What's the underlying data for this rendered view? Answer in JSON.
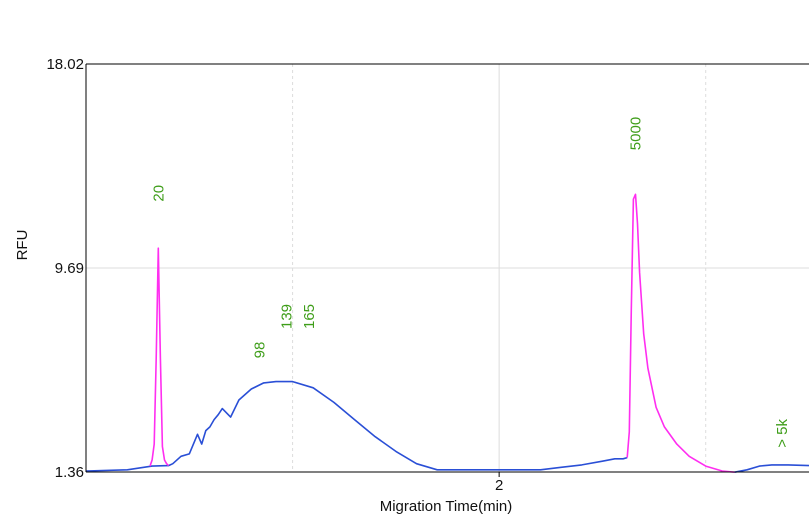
{
  "chart_data": {
    "type": "line",
    "xlabel": "Migration Time(min)",
    "ylabel": "RFU",
    "ylim": [
      1.36,
      18.02
    ],
    "y_ticks": [
      "18.02",
      "9.69",
      "1.36"
    ],
    "x_ticks": [
      {
        "value": 2,
        "label": "2"
      }
    ],
    "xlim": [
      1.0,
      2.75
    ],
    "grid": true,
    "colors": {
      "baseline": "#2a4fd6",
      "peak": "#ff2ef0",
      "label": "#3f9e1a",
      "grid": "#dddddd",
      "axis": "#000000"
    },
    "series": [
      {
        "role": "baseline",
        "x": [
          1.0,
          1.1,
          1.16,
          1.2,
          1.21,
          1.23,
          1.25,
          1.27,
          1.28,
          1.29,
          1.3,
          1.31,
          1.32,
          1.33,
          1.35,
          1.37,
          1.4,
          1.43,
          1.46,
          1.5,
          1.55,
          1.6,
          1.65,
          1.7,
          1.75,
          1.8,
          1.85,
          1.9,
          1.95,
          2.0,
          2.05,
          2.1,
          2.15,
          2.2,
          2.25,
          2.28,
          2.3,
          2.31
        ],
        "y": [
          1.4,
          1.45,
          1.6,
          1.62,
          1.7,
          2.0,
          2.1,
          2.9,
          2.5,
          3.05,
          3.2,
          3.5,
          3.7,
          3.95,
          3.6,
          4.3,
          4.75,
          5.0,
          5.05,
          5.05,
          4.8,
          4.2,
          3.5,
          2.8,
          2.2,
          1.7,
          1.45,
          1.45,
          1.45,
          1.45,
          1.45,
          1.45,
          1.55,
          1.65,
          1.8,
          1.9,
          1.9,
          1.95
        ]
      },
      {
        "role": "peak",
        "x": [
          1.155,
          1.16,
          1.165,
          1.17,
          1.175,
          1.18,
          1.185,
          1.19,
          1.195,
          1.2
        ],
        "y": [
          1.6,
          1.85,
          2.5,
          6.0,
          10.5,
          6.0,
          2.4,
          1.85,
          1.7,
          1.62
        ]
      },
      {
        "role": "peak",
        "x": [
          2.31,
          2.315,
          2.32,
          2.325,
          2.33,
          2.335,
          2.34,
          2.35,
          2.36,
          2.38,
          2.4,
          2.43,
          2.46,
          2.5,
          2.54,
          2.57
        ],
        "y": [
          1.95,
          3.0,
          8.0,
          12.5,
          12.7,
          11.5,
          9.5,
          7.0,
          5.6,
          4.0,
          3.2,
          2.5,
          2.0,
          1.6,
          1.4,
          1.35
        ]
      },
      {
        "role": "baseline",
        "x": [
          2.57,
          2.6,
          2.63,
          2.66,
          2.7,
          2.75
        ],
        "y": [
          1.35,
          1.45,
          1.6,
          1.65,
          1.65,
          1.62
        ]
      }
    ],
    "peaks": [
      {
        "label": "20",
        "x": 1.175,
        "y": 12.4
      },
      {
        "label": "98",
        "x": 1.42,
        "y": 6.0
      },
      {
        "label": "139",
        "x": 1.485,
        "y": 7.2
      },
      {
        "label": "165",
        "x": 1.54,
        "y": 7.2
      },
      {
        "label": "5000",
        "x": 2.33,
        "y": 14.5
      },
      {
        "label": "> 5k",
        "x": 2.685,
        "y": 2.35
      }
    ]
  }
}
